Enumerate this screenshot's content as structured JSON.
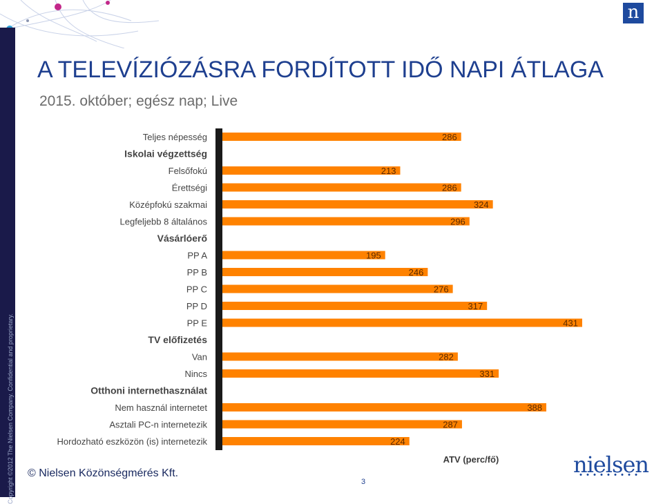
{
  "header": {
    "title": "A TELEVÍZIÓZÁSRA FORDÍTOTT IDŐ NAPI ÁTLAGA",
    "subtitle": "2015. október; egész nap; Live"
  },
  "branding": {
    "logo_mark": "n",
    "logo_text": "nielsen",
    "copyright": "Copyright ©2012 The Nielsen Company. Confidential and proprietary."
  },
  "footer": {
    "text": "© Nielsen Közönségmérés Kft.",
    "page_number": "3"
  },
  "colors": {
    "bar": "#ff8200",
    "title": "#1e3f8f",
    "axis": "#1a1a1a",
    "side_strip": "#1a1a4a"
  },
  "chart_data": {
    "type": "bar",
    "orientation": "horizontal",
    "title": "A TELEVÍZIÓZÁSRA FORDÍTOTT IDŐ NAPI ÁTLAGA",
    "xlabel": "ATV (perc/fő)",
    "ylabel": "",
    "xlim": [
      0,
      480
    ],
    "grid": false,
    "rows": [
      {
        "label": "Teljes népesség",
        "value": 286
      },
      {
        "label": "Iskolai végzettség",
        "heading": true
      },
      {
        "label": "Felsőfokú",
        "value": 213
      },
      {
        "label": "Érettségi",
        "value": 286
      },
      {
        "label": "Középfokú szakmai",
        "value": 324
      },
      {
        "label": "Legfeljebb 8 általános",
        "value": 296
      },
      {
        "label": "Vásárlóerő",
        "heading": true
      },
      {
        "label": "PP A",
        "value": 195
      },
      {
        "label": "PP B",
        "value": 246
      },
      {
        "label": "PP C",
        "value": 276
      },
      {
        "label": "PP D",
        "value": 317
      },
      {
        "label": "PP E",
        "value": 431
      },
      {
        "label": "TV előfizetés",
        "heading": true
      },
      {
        "label": "Van",
        "value": 282
      },
      {
        "label": "Nincs",
        "value": 331
      },
      {
        "label": "Otthoni internethasználat",
        "heading": true
      },
      {
        "label": "Nem használ internetet",
        "value": 388
      },
      {
        "label": "Asztali PC-n internetezik",
        "value": 287
      },
      {
        "label": "Hordozható eszközön (is) internetezik",
        "value": 224
      }
    ]
  }
}
